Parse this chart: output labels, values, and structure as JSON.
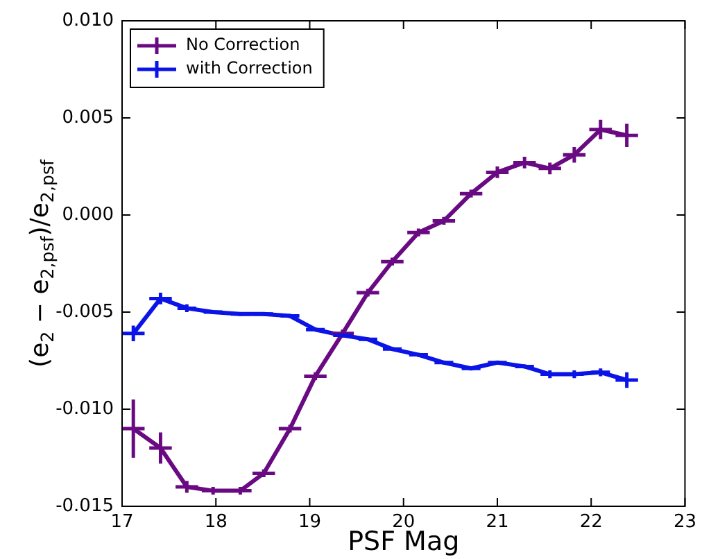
{
  "chart_data": {
    "type": "line",
    "xlabel": "PSF Mag",
    "ylabel": "(e$_{2}$ − e$_{2,psf}$)/e$_{2,psf}$",
    "xlim": [
      17,
      23
    ],
    "xticks": [
      17,
      18,
      19,
      20,
      21,
      22,
      23
    ],
    "ylim": [
      -0.015,
      0.01
    ],
    "yticks": [
      {
        "value": -0.015,
        "label": "-0.015"
      },
      {
        "value": -0.01,
        "label": "-0.010"
      },
      {
        "value": -0.005,
        "label": "-0.005"
      },
      {
        "value": 0,
        "label": "0.000"
      },
      {
        "value": 0.005,
        "label": "0.005"
      },
      {
        "value": 0.01,
        "label": "0.010"
      }
    ],
    "x": [
      17.12,
      17.41,
      17.69,
      17.97,
      18.26,
      18.51,
      18.79,
      19.06,
      19.35,
      19.62,
      19.88,
      20.16,
      20.43,
      20.72,
      21.0,
      21.29,
      21.56,
      21.82,
      22.1,
      22.38
    ],
    "series": [
      {
        "name": "No Correction",
        "color": "#6a0a82",
        "values": [
          -0.011,
          -0.012,
          -0.014,
          -0.0142,
          -0.0142,
          -0.0133,
          -0.011,
          -0.0083,
          -0.0061,
          -0.004,
          -0.0024,
          -0.0009,
          -0.0003,
          0.0011,
          0.0022,
          0.0027,
          0.0024,
          0.0031,
          0.0044,
          0.0041
        ],
        "errors": [
          0.0015,
          0.0008,
          0.0003,
          0.0002,
          0.0002,
          0.0002,
          0.0002,
          0.0002,
          0.0002,
          0.0002,
          0.0002,
          0.0002,
          0.0002,
          0.0002,
          0.0003,
          0.0003,
          0.0003,
          0.0004,
          0.0005,
          0.0006
        ],
        "xerrors": [
          0.12,
          0.12,
          0.12,
          0.12,
          0.12,
          0.12,
          0.12,
          0.12,
          0.12,
          0.12,
          0.12,
          0.12,
          0.12,
          0.12,
          0.12,
          0.12,
          0.12,
          0.12,
          0.12,
          0.12
        ]
      },
      {
        "name": "with Correction",
        "color": "#0a14e6",
        "values": [
          -0.0061,
          -0.0043,
          -0.0048,
          -0.005,
          -0.0051,
          -0.0051,
          -0.0052,
          -0.0059,
          -0.0062,
          -0.0064,
          -0.0069,
          -0.0072,
          -0.0076,
          -0.0079,
          -0.0076,
          -0.0078,
          -0.0082,
          -0.0082,
          -0.0081,
          -0.0085
        ],
        "errors": [
          0.0004,
          0.0003,
          0.0002,
          0.0001,
          0.0001,
          0.0001,
          0.0001,
          0.0001,
          0.0001,
          0.0001,
          0.0001,
          0.0001,
          0.0001,
          0.0001,
          0.0001,
          0.0001,
          0.0002,
          0.0002,
          0.0002,
          0.0004
        ],
        "xerrors": [
          0.12,
          0.12,
          0.1,
          0.1,
          0.1,
          0.1,
          0.1,
          0.1,
          0.1,
          0.1,
          0.1,
          0.1,
          0.1,
          0.1,
          0.1,
          0.1,
          0.1,
          0.1,
          0.1,
          0.12
        ]
      }
    ],
    "marker": "none",
    "line_style": "solid",
    "grid": false,
    "legend": "top left"
  }
}
